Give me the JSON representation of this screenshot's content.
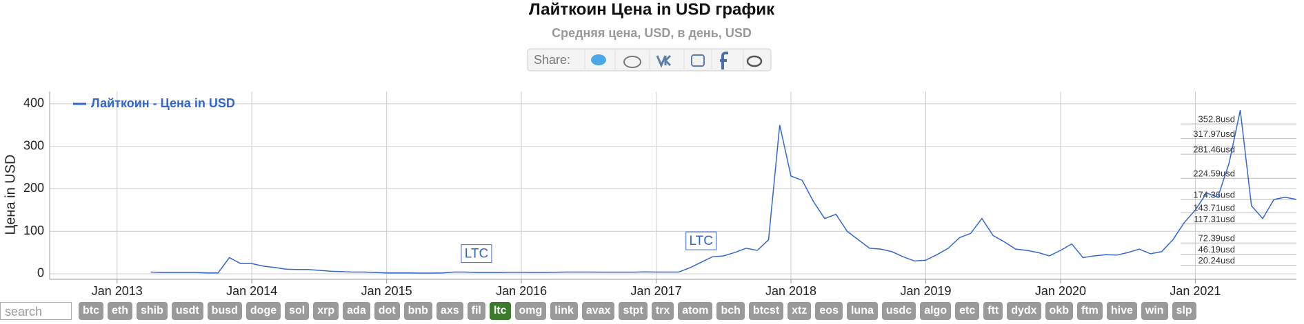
{
  "chart_data": {
    "type": "line",
    "title": "Лайткоин Цена in USD график",
    "subtitle": "Средняя цена, USD, в день, USD",
    "y_label": "Цена in USD",
    "series": [
      {
        "name": "Лайткоин - Цена in USD",
        "color": "#3366cc",
        "x": [
          "2013-04",
          "2013-05",
          "2013-06",
          "2013-07",
          "2013-08",
          "2013-09",
          "2013-10",
          "2013-11",
          "2013-12",
          "2014-01",
          "2014-02",
          "2014-03",
          "2014-04",
          "2014-05",
          "2014-06",
          "2014-07",
          "2014-08",
          "2014-09",
          "2014-10",
          "2014-11",
          "2014-12",
          "2015-01",
          "2015-02",
          "2015-03",
          "2015-04",
          "2015-05",
          "2015-06",
          "2015-07",
          "2015-08",
          "2015-09",
          "2015-10",
          "2015-11",
          "2015-12",
          "2016-01",
          "2016-02",
          "2016-03",
          "2016-04",
          "2016-05",
          "2016-06",
          "2016-07",
          "2016-08",
          "2016-09",
          "2016-10",
          "2016-11",
          "2016-12",
          "2017-01",
          "2017-02",
          "2017-03",
          "2017-04",
          "2017-05",
          "2017-06",
          "2017-07",
          "2017-08",
          "2017-09",
          "2017-10",
          "2017-11",
          "2017-12",
          "2018-01",
          "2018-02",
          "2018-03",
          "2018-04",
          "2018-05",
          "2018-06",
          "2018-07",
          "2018-08",
          "2018-09",
          "2018-10",
          "2018-11",
          "2018-12",
          "2019-01",
          "2019-02",
          "2019-03",
          "2019-04",
          "2019-05",
          "2019-06",
          "2019-07",
          "2019-08",
          "2019-09",
          "2019-10",
          "2019-11",
          "2019-12",
          "2020-01",
          "2020-02",
          "2020-03",
          "2020-04",
          "2020-05",
          "2020-06",
          "2020-07",
          "2020-08",
          "2020-09",
          "2020-10",
          "2020-11",
          "2020-12",
          "2021-01",
          "2021-02",
          "2021-03",
          "2021-04",
          "2021-05",
          "2021-06",
          "2021-07",
          "2021-08",
          "2021-09",
          "2021-10"
        ],
        "values": [
          4,
          3,
          3,
          3,
          3,
          2,
          2,
          38,
          24,
          24,
          18,
          15,
          11,
          10,
          10,
          8,
          6,
          5,
          4,
          4,
          3,
          2,
          2,
          2,
          1.5,
          1.5,
          2,
          4,
          4,
          3,
          3,
          3,
          3.5,
          3.5,
          3.2,
          3.2,
          3.5,
          4,
          4,
          4,
          3.8,
          3.8,
          3.9,
          3.9,
          4.4,
          4,
          4,
          4,
          14,
          27,
          40,
          42,
          50,
          60,
          55,
          80,
          350,
          230,
          220,
          170,
          130,
          140,
          100,
          80,
          60,
          58,
          52,
          40,
          30,
          32,
          45,
          60,
          85,
          95,
          130,
          90,
          75,
          58,
          55,
          50,
          42,
          55,
          70,
          38,
          42,
          45,
          44,
          50,
          58,
          47,
          52,
          80,
          120,
          150,
          190,
          180,
          260,
          385,
          160,
          130,
          175,
          180,
          175
        ]
      }
    ],
    "xlim": [
      "2012-07",
      "2021-10"
    ],
    "xticks": [
      {
        "value": "2013-01",
        "label": "Jan 2013"
      },
      {
        "value": "2014-01",
        "label": "Jan 2014"
      },
      {
        "value": "2015-01",
        "label": "Jan 2015"
      },
      {
        "value": "2016-01",
        "label": "Jan 2016"
      },
      {
        "value": "2017-01",
        "label": "Jan 2017"
      },
      {
        "value": "2018-01",
        "label": "Jan 2018"
      },
      {
        "value": "2019-01",
        "label": "Jan 2019"
      },
      {
        "value": "2020-01",
        "label": "Jan 2020"
      },
      {
        "value": "2021-01",
        "label": "Jan 2021"
      }
    ],
    "ylim": [
      -13,
      429
    ],
    "yticks": [
      0,
      100,
      200,
      300,
      400
    ],
    "grid": true,
    "legend": "upper left",
    "ref_lines": [
      {
        "value": 352.8,
        "label": "352.8usd"
      },
      {
        "value": 317.97,
        "label": "317.97usd"
      },
      {
        "value": 281.46,
        "label": "281.46usd"
      },
      {
        "value": 224.59,
        "label": "224.59usd"
      },
      {
        "value": 174.36,
        "label": "174.36usd"
      },
      {
        "value": 143.71,
        "label": "143.71usd"
      },
      {
        "value": 117.31,
        "label": "117.31usd"
      },
      {
        "value": 72.39,
        "label": "72.39usd"
      },
      {
        "value": 46.19,
        "label": "46.19usd"
      },
      {
        "value": 20.24,
        "label": "20.24usd"
      }
    ],
    "annotations": [
      {
        "x": "2015-09",
        "y": 20,
        "text": "LTC"
      },
      {
        "x": "2017-05",
        "y": 50,
        "text": "LTC"
      }
    ]
  },
  "share_label": "Share:",
  "search_placeholder": "search",
  "coins": [
    "btc",
    "eth",
    "shib",
    "usdt",
    "busd",
    "doge",
    "sol",
    "xrp",
    "ada",
    "dot",
    "bnb",
    "axs",
    "fil",
    "ltc",
    "omg",
    "link",
    "avax",
    "stpt",
    "trx",
    "atom",
    "bch",
    "btcst",
    "xtz",
    "eos",
    "luna",
    "usdc",
    "algo",
    "etc",
    "ftt",
    "dydx",
    "okb",
    "ftm",
    "hive",
    "win",
    "slp"
  ],
  "active_coin": "ltc"
}
